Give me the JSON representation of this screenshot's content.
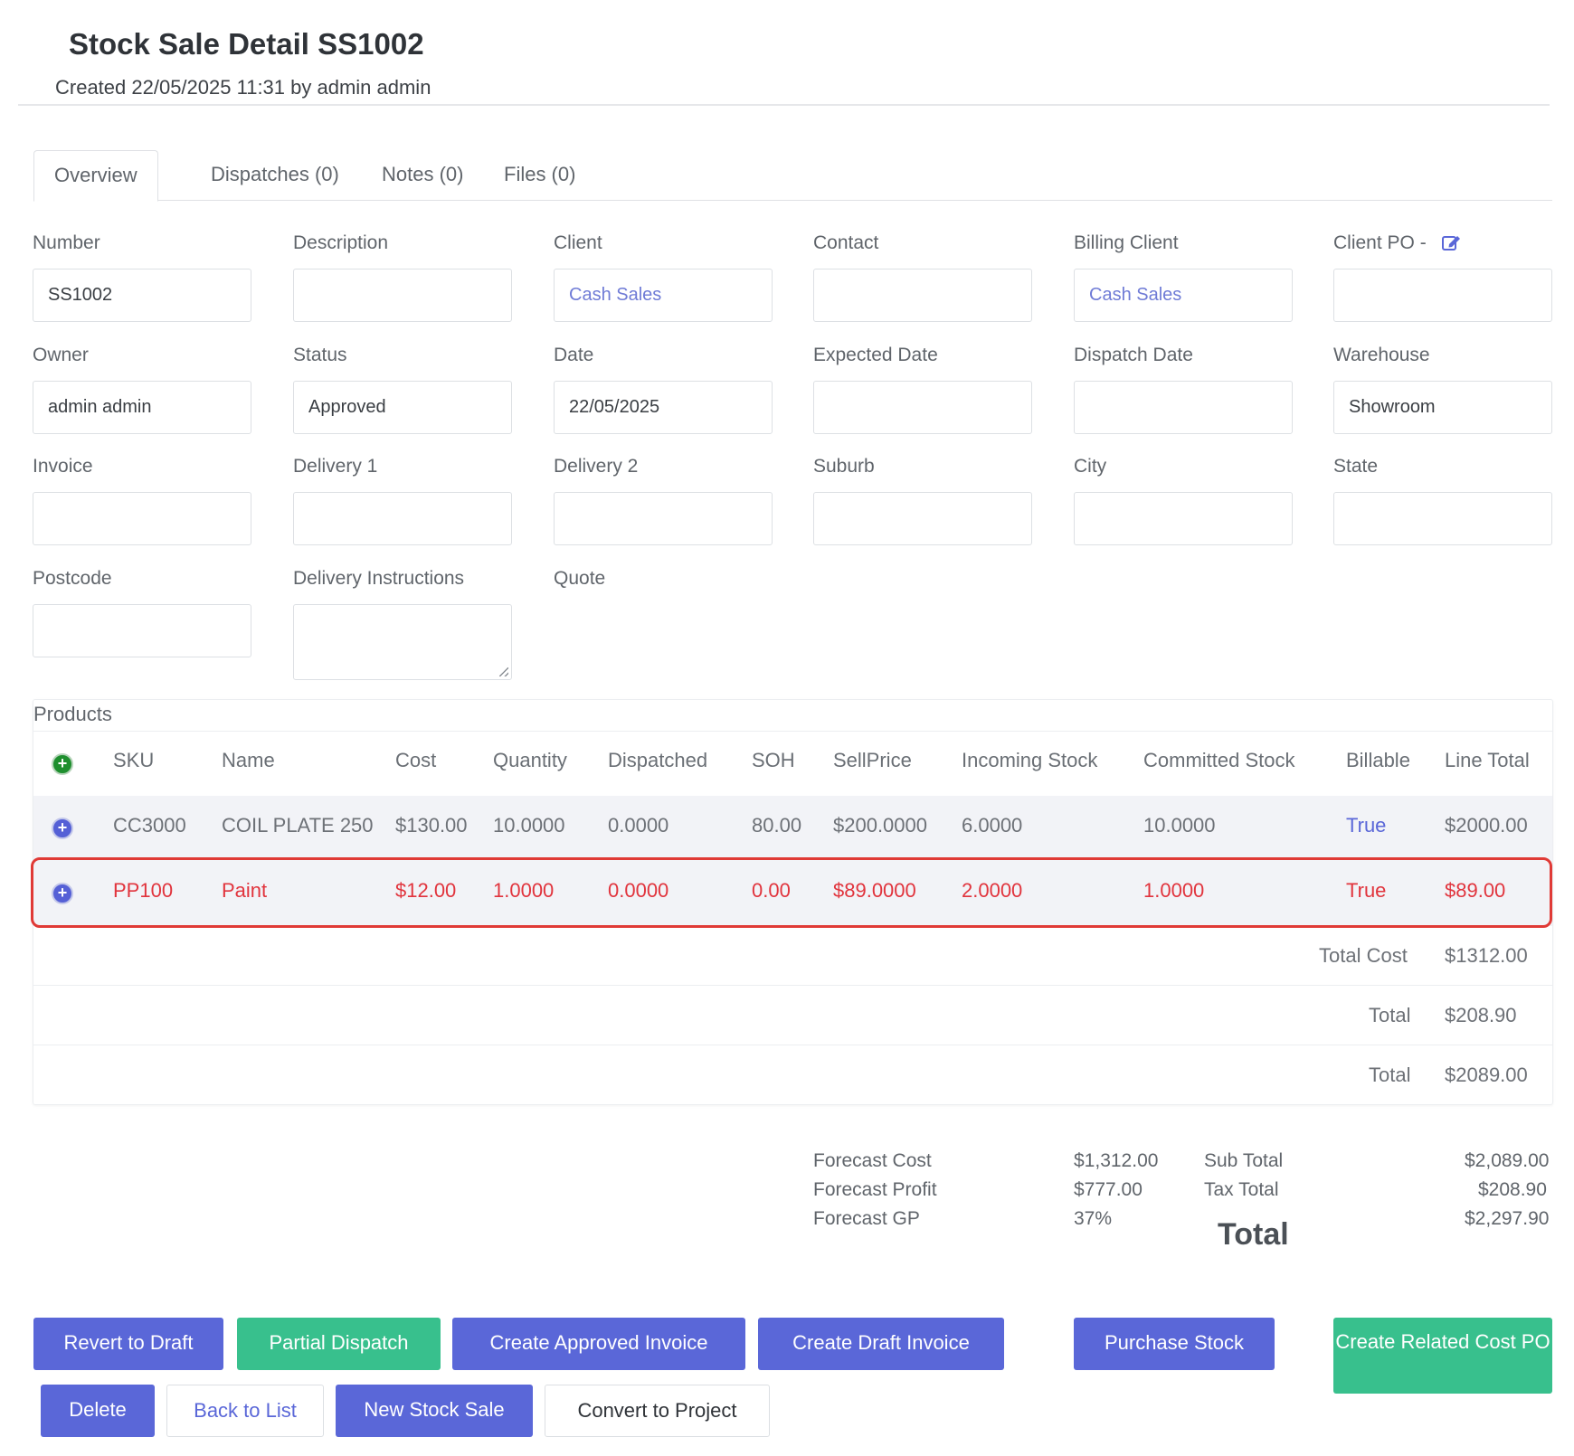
{
  "header": {
    "title": "Stock Sale Detail SS1002",
    "subtitle": "Created 22/05/2025 11:31 by admin admin"
  },
  "tabs": [
    {
      "label": "Overview"
    },
    {
      "label": "Dispatches (0)"
    },
    {
      "label": "Notes (0)"
    },
    {
      "label": "Files (0)"
    }
  ],
  "form": {
    "number": {
      "label": "Number",
      "value": "SS1002"
    },
    "description": {
      "label": "Description",
      "value": ""
    },
    "client": {
      "label": "Client",
      "value": "Cash Sales"
    },
    "contact": {
      "label": "Contact",
      "value": ""
    },
    "billing_client": {
      "label": "Billing Client",
      "value": "Cash Sales"
    },
    "client_po": {
      "label": "Client PO -",
      "value": ""
    },
    "owner": {
      "label": "Owner",
      "value": "admin admin"
    },
    "status": {
      "label": "Status",
      "value": "Approved"
    },
    "date": {
      "label": "Date",
      "value": "22/05/2025"
    },
    "expected_date": {
      "label": "Expected Date",
      "value": ""
    },
    "dispatch_date": {
      "label": "Dispatch Date",
      "value": ""
    },
    "warehouse": {
      "label": "Warehouse",
      "value": "Showroom"
    },
    "invoice": {
      "label": "Invoice",
      "value": ""
    },
    "delivery1": {
      "label": "Delivery 1",
      "value": ""
    },
    "delivery2": {
      "label": "Delivery 2",
      "value": ""
    },
    "suburb": {
      "label": "Suburb",
      "value": ""
    },
    "city": {
      "label": "City",
      "value": ""
    },
    "state": {
      "label": "State",
      "value": ""
    },
    "postcode": {
      "label": "Postcode",
      "value": ""
    },
    "delivery_instructions": {
      "label": "Delivery Instructions",
      "value": ""
    },
    "quote": {
      "label": "Quote"
    }
  },
  "products": {
    "title": "Products",
    "columns": [
      "SKU",
      "Name",
      "Cost",
      "Quantity",
      "Dispatched",
      "SOH",
      "SellPrice",
      "Incoming Stock",
      "Committed Stock",
      "Billable",
      "Line Total"
    ],
    "rows": [
      {
        "sku": "CC3000",
        "name": "COIL PLATE 250",
        "cost": "$130.00",
        "quantity": "10.0000",
        "dispatched": "0.0000",
        "soh": "80.00",
        "sell_price": "$200.0000",
        "incoming": "6.0000",
        "committed": "10.0000",
        "billable": "True",
        "line_total": "$2000.00"
      },
      {
        "sku": "PP100",
        "name": "Paint",
        "cost": "$12.00",
        "quantity": "1.0000",
        "dispatched": "0.0000",
        "soh": "0.00",
        "sell_price": "$89.0000",
        "incoming": "2.0000",
        "committed": "1.0000",
        "billable": "True",
        "line_total": "$89.00"
      }
    ],
    "totals": [
      {
        "label": "Total Cost",
        "value": "$1312.00"
      },
      {
        "label": "Total",
        "value": "$208.90"
      },
      {
        "label": "Total",
        "value": "$2089.00"
      }
    ]
  },
  "summary": {
    "forecast_cost_label": "Forecast Cost",
    "forecast_cost": "$1,312.00",
    "forecast_profit_label": "Forecast Profit",
    "forecast_profit": "$777.00",
    "forecast_gp_label": "Forecast GP",
    "forecast_gp": "37%",
    "sub_total_label": "Sub Total",
    "sub_total": "$2,089.00",
    "tax_total_label": "Tax Total",
    "tax_total": "$208.90",
    "total_label": "Total",
    "total": "$2,297.90"
  },
  "actions": {
    "revert_to_draft": "Revert to Draft",
    "partial_dispatch": "Partial Dispatch",
    "create_approved_invoice": "Create Approved Invoice",
    "create_draft_invoice": "Create Draft Invoice",
    "purchase_stock": "Purchase Stock",
    "create_related_cost_po": "Create Related Cost PO",
    "delete": "Delete",
    "back_to_list": "Back to List",
    "new_stock_sale": "New Stock Sale",
    "convert_to_project": "Convert to Project"
  },
  "colors": {
    "primary": "#5a67d8",
    "success": "#38c08d",
    "danger": "#e1343d",
    "link": "#6f7bd6"
  },
  "icons": {
    "add_product": "plus-circle-icon",
    "expand_row": "plus-circle-icon",
    "client_po_edit": "edit-icon"
  }
}
